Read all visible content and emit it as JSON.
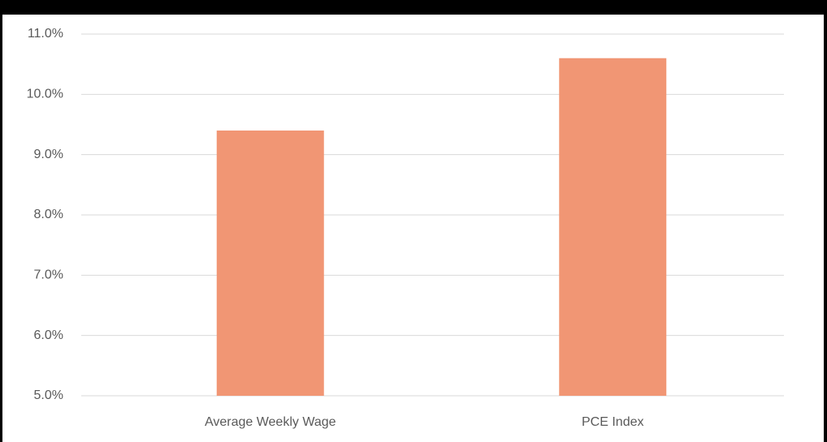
{
  "chart_data": {
    "type": "bar",
    "categories": [
      "Average Weekly Wage",
      "PCE Index"
    ],
    "values": [
      9.4,
      10.6
    ],
    "color": "#f19674",
    "ylim": [
      5,
      11
    ],
    "yticks": [
      {
        "value": 5,
        "label": "5.0%"
      },
      {
        "value": 6,
        "label": "6.0%"
      },
      {
        "value": 7,
        "label": "7.0%"
      },
      {
        "value": 8,
        "label": "8.0%"
      },
      {
        "value": 9,
        "label": "9.0%"
      },
      {
        "value": 10,
        "label": "10.0%"
      },
      {
        "value": 11,
        "label": "11.0%"
      }
    ],
    "grid": true
  }
}
